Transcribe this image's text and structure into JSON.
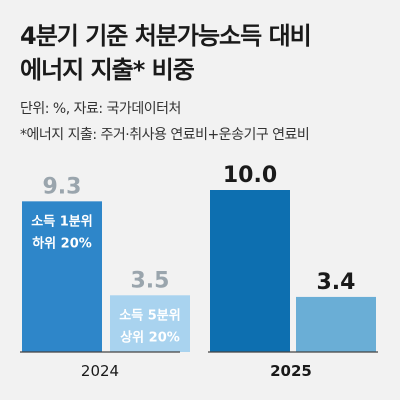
{
  "header": {
    "title_line1": "4분기 기준 처분가능소득 대비",
    "title_line2": "에너지 지출* 비중",
    "unit_note": "단위: %, 자료: 국가데이터처",
    "footnote": "*에너지 지출: 주거·취사용 연료비+운송기구 연료비"
  },
  "chart_data": {
    "type": "bar",
    "title": "4분기 기준 처분가능소득 대비 에너지 지출* 비중",
    "categories": [
      "2024",
      "2025"
    ],
    "series": [
      {
        "name": "소득 1분위 하위 20%",
        "values": [
          9.3,
          10.0
        ],
        "label_lines": [
          "소득 1분위",
          "하위 20%"
        ]
      },
      {
        "name": "소득 5분위 상위 20%",
        "values": [
          3.5,
          3.4
        ],
        "label_lines": [
          "소득 5분위",
          "상위 20%"
        ]
      }
    ],
    "value_labels": [
      [
        "9.3",
        "10.0"
      ],
      [
        "3.5",
        "3.4"
      ]
    ],
    "ylim": [
      0,
      12
    ],
    "grid": false,
    "colors": {
      "2024": [
        "#2e86c9",
        "#a9d3ef"
      ],
      "2025": [
        "#0d6fb0",
        "#6aaed6"
      ],
      "value_label_2024": "#9aa5ad",
      "value_label_2025": "#1a1a1a",
      "axis": "#444444"
    }
  }
}
